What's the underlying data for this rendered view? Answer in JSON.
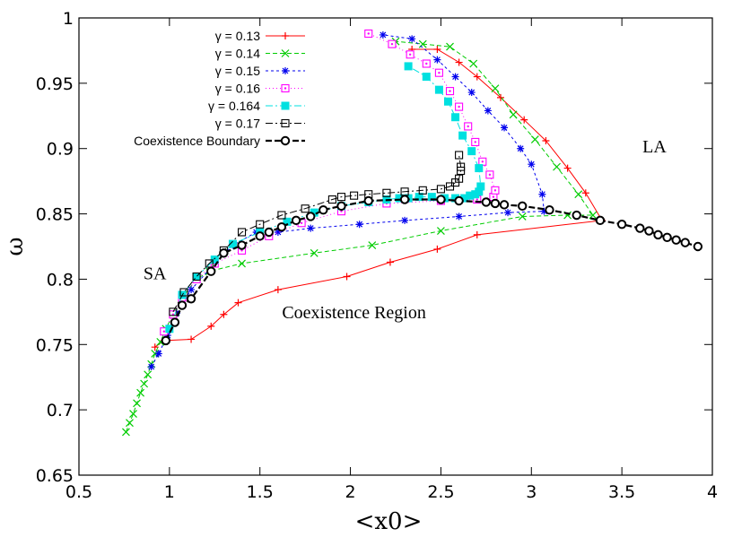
{
  "chart_data": {
    "type": "line",
    "title": "",
    "xlabel": "<x0>",
    "ylabel": "ω",
    "xlim": [
      0.5,
      4
    ],
    "ylim": [
      0.65,
      1
    ],
    "xticks": [
      "0.5",
      "1",
      "1.5",
      "2",
      "2.5",
      "3",
      "3.5",
      "4"
    ],
    "yticks": [
      "0.65",
      "0.7",
      "0.75",
      "0.8",
      "0.85",
      "0.9",
      "0.95",
      "1"
    ],
    "grid": false,
    "legend_position": "top-left",
    "annotations": [
      {
        "text": "LA",
        "x": 3.68,
        "y": 0.897
      },
      {
        "text": "SA",
        "x": 0.92,
        "y": 0.8
      },
      {
        "text": "Coexistence Region",
        "x": 2.02,
        "y": 0.77
      }
    ],
    "series": [
      {
        "name": "γ = 0.13",
        "color": "#ff0000",
        "marker": "plus",
        "dash": "",
        "points": [
          [
            0.92,
            0.748
          ],
          [
            0.97,
            0.753
          ],
          [
            1.12,
            0.754
          ],
          [
            1.23,
            0.764
          ],
          [
            1.3,
            0.773
          ],
          [
            1.38,
            0.782
          ],
          [
            1.6,
            0.792
          ],
          [
            1.98,
            0.802
          ],
          [
            2.22,
            0.813
          ],
          [
            2.48,
            0.823
          ],
          [
            2.7,
            0.834
          ],
          [
            3.39,
            0.845
          ],
          [
            3.3,
            0.866
          ],
          [
            3.2,
            0.885
          ],
          [
            3.08,
            0.906
          ],
          [
            2.96,
            0.922
          ],
          [
            2.83,
            0.939
          ],
          [
            2.7,
            0.955
          ],
          [
            2.6,
            0.966
          ],
          [
            2.48,
            0.976
          ],
          [
            2.34,
            0.976
          ]
        ]
      },
      {
        "name": "γ = 0.14",
        "color": "#00cc00",
        "marker": "x",
        "dash": "5,3",
        "points": [
          [
            0.76,
            0.683
          ],
          [
            0.78,
            0.69
          ],
          [
            0.8,
            0.697
          ],
          [
            0.82,
            0.705
          ],
          [
            0.84,
            0.713
          ],
          [
            0.86,
            0.72
          ],
          [
            0.88,
            0.727
          ],
          [
            0.9,
            0.735
          ],
          [
            0.92,
            0.743
          ],
          [
            0.95,
            0.752
          ],
          [
            0.98,
            0.762
          ],
          [
            1.02,
            0.773
          ],
          [
            1.07,
            0.786
          ],
          [
            1.15,
            0.8
          ],
          [
            1.22,
            0.806
          ],
          [
            1.4,
            0.812
          ],
          [
            1.8,
            0.82
          ],
          [
            2.12,
            0.826
          ],
          [
            2.5,
            0.837
          ],
          [
            2.95,
            0.848
          ],
          [
            3.2,
            0.849
          ],
          [
            3.34,
            0.849
          ],
          [
            3.26,
            0.865
          ],
          [
            3.14,
            0.886
          ],
          [
            3.02,
            0.907
          ],
          [
            2.9,
            0.926
          ],
          [
            2.8,
            0.946
          ],
          [
            2.68,
            0.965
          ],
          [
            2.55,
            0.978
          ],
          [
            2.4,
            0.98
          ],
          [
            2.25,
            0.982
          ]
        ]
      },
      {
        "name": "γ = 0.15",
        "color": "#0000ee",
        "marker": "star",
        "dash": "3,3",
        "points": [
          [
            0.9,
            0.733
          ],
          [
            0.94,
            0.743
          ],
          [
            0.99,
            0.757
          ],
          [
            1.04,
            0.774
          ],
          [
            1.12,
            0.792
          ],
          [
            1.25,
            0.812
          ],
          [
            1.35,
            0.826
          ],
          [
            1.48,
            0.836
          ],
          [
            1.6,
            0.836
          ],
          [
            1.78,
            0.839
          ],
          [
            2.05,
            0.842
          ],
          [
            2.3,
            0.845
          ],
          [
            2.6,
            0.848
          ],
          [
            2.87,
            0.851
          ],
          [
            3.07,
            0.852
          ],
          [
            3.06,
            0.865
          ],
          [
            3.0,
            0.888
          ],
          [
            2.94,
            0.9
          ],
          [
            2.85,
            0.916
          ],
          [
            2.76,
            0.929
          ],
          [
            2.67,
            0.943
          ],
          [
            2.58,
            0.955
          ],
          [
            2.48,
            0.968
          ],
          [
            2.34,
            0.984
          ],
          [
            2.18,
            0.987
          ]
        ]
      },
      {
        "name": "γ = 0.16",
        "color": "#ff00ff",
        "marker": "dotsq",
        "dash": "1,3",
        "points": [
          [
            0.97,
            0.76
          ],
          [
            1.02,
            0.773
          ],
          [
            1.07,
            0.786
          ],
          [
            1.15,
            0.8
          ],
          [
            1.25,
            0.812
          ],
          [
            1.4,
            0.822
          ],
          [
            1.55,
            0.833
          ],
          [
            1.73,
            0.843
          ],
          [
            1.95,
            0.852
          ],
          [
            2.2,
            0.858
          ],
          [
            2.5,
            0.86
          ],
          [
            2.7,
            0.861
          ],
          [
            2.79,
            0.863
          ],
          [
            2.8,
            0.868
          ],
          [
            2.77,
            0.88
          ],
          [
            2.73,
            0.89
          ],
          [
            2.69,
            0.905
          ],
          [
            2.65,
            0.917
          ],
          [
            2.6,
            0.932
          ],
          [
            2.55,
            0.944
          ],
          [
            2.49,
            0.958
          ],
          [
            2.42,
            0.965
          ],
          [
            2.33,
            0.972
          ],
          [
            2.23,
            0.98
          ],
          [
            2.1,
            0.988
          ]
        ]
      },
      {
        "name": "γ = 0.164",
        "color": "#00e0e0",
        "marker": "fillsq",
        "dash": "8,3,2,3",
        "points": [
          [
            1.0,
            0.762
          ],
          [
            1.07,
            0.788
          ],
          [
            1.15,
            0.802
          ],
          [
            1.25,
            0.815
          ],
          [
            1.35,
            0.827
          ],
          [
            1.5,
            0.836
          ],
          [
            1.65,
            0.844
          ],
          [
            1.8,
            0.851
          ],
          [
            1.95,
            0.856
          ],
          [
            2.1,
            0.859
          ],
          [
            2.2,
            0.861
          ],
          [
            2.27,
            0.862
          ],
          [
            2.32,
            0.862
          ],
          [
            2.38,
            0.863
          ],
          [
            2.45,
            0.863
          ],
          [
            2.52,
            0.862
          ],
          [
            2.58,
            0.862
          ],
          [
            2.63,
            0.862
          ],
          [
            2.66,
            0.864
          ],
          [
            2.69,
            0.865
          ],
          [
            2.71,
            0.867
          ],
          [
            2.72,
            0.871
          ],
          [
            2.71,
            0.885
          ],
          [
            2.67,
            0.898
          ],
          [
            2.62,
            0.91
          ],
          [
            2.58,
            0.924
          ],
          [
            2.54,
            0.936
          ],
          [
            2.49,
            0.945
          ],
          [
            2.42,
            0.955
          ],
          [
            2.32,
            0.963
          ]
        ]
      },
      {
        "name": "γ = 0.17",
        "color": "#000000",
        "marker": "opensq",
        "dash": "8,3,2,3",
        "points": [
          [
            1.02,
            0.775
          ],
          [
            1.08,
            0.79
          ],
          [
            1.15,
            0.802
          ],
          [
            1.22,
            0.812
          ],
          [
            1.3,
            0.822
          ],
          [
            1.4,
            0.836
          ],
          [
            1.5,
            0.842
          ],
          [
            1.62,
            0.849
          ],
          [
            1.75,
            0.854
          ],
          [
            1.9,
            0.861
          ],
          [
            1.95,
            0.863
          ],
          [
            2.02,
            0.864
          ],
          [
            2.1,
            0.865
          ],
          [
            2.2,
            0.866
          ],
          [
            2.3,
            0.867
          ],
          [
            2.4,
            0.868
          ],
          [
            2.5,
            0.869
          ],
          [
            2.55,
            0.871
          ],
          [
            2.58,
            0.874
          ],
          [
            2.6,
            0.877
          ],
          [
            2.61,
            0.883
          ],
          [
            2.61,
            0.886
          ],
          [
            2.6,
            0.895
          ]
        ]
      },
      {
        "name": "Coexistence Boundary",
        "color": "#000000",
        "marker": "circle",
        "dash": "7,3",
        "width": 2.2,
        "points": [
          [
            0.98,
            0.753
          ],
          [
            1.03,
            0.767
          ],
          [
            1.07,
            0.78
          ],
          [
            1.12,
            0.785
          ],
          [
            1.23,
            0.806
          ],
          [
            1.3,
            0.82
          ],
          [
            1.4,
            0.826
          ],
          [
            1.5,
            0.833
          ],
          [
            1.55,
            0.836
          ],
          [
            1.62,
            0.84
          ],
          [
            1.7,
            0.845
          ],
          [
            1.78,
            0.848
          ],
          [
            1.85,
            0.853
          ],
          [
            1.95,
            0.856
          ],
          [
            2.1,
            0.86
          ],
          [
            2.3,
            0.861
          ],
          [
            2.5,
            0.861
          ],
          [
            2.6,
            0.86
          ],
          [
            2.75,
            0.859
          ],
          [
            2.8,
            0.858
          ],
          [
            2.85,
            0.857
          ],
          [
            2.95,
            0.856
          ],
          [
            3.1,
            0.853
          ],
          [
            3.25,
            0.849
          ],
          [
            3.38,
            0.845
          ],
          [
            3.5,
            0.842
          ],
          [
            3.6,
            0.839
          ],
          [
            3.65,
            0.837
          ],
          [
            3.7,
            0.834
          ],
          [
            3.75,
            0.832
          ],
          [
            3.8,
            0.83
          ],
          [
            3.85,
            0.828
          ],
          [
            3.92,
            0.825
          ]
        ]
      }
    ]
  }
}
